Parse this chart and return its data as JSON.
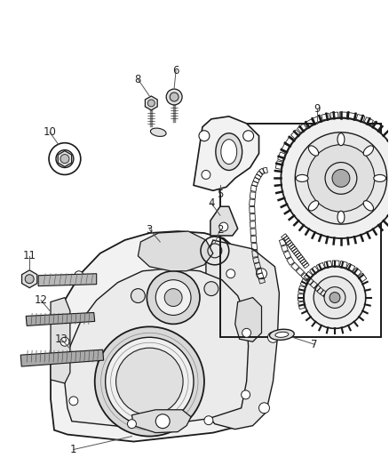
{
  "bg_color": "#ffffff",
  "fig_width": 4.38,
  "fig_height": 5.33,
  "dpi": 100,
  "line_color": "#1a1a1a",
  "fill_light": "#f2f2f2",
  "fill_mid": "#e0e0e0",
  "fill_dark": "#c0c0c0"
}
